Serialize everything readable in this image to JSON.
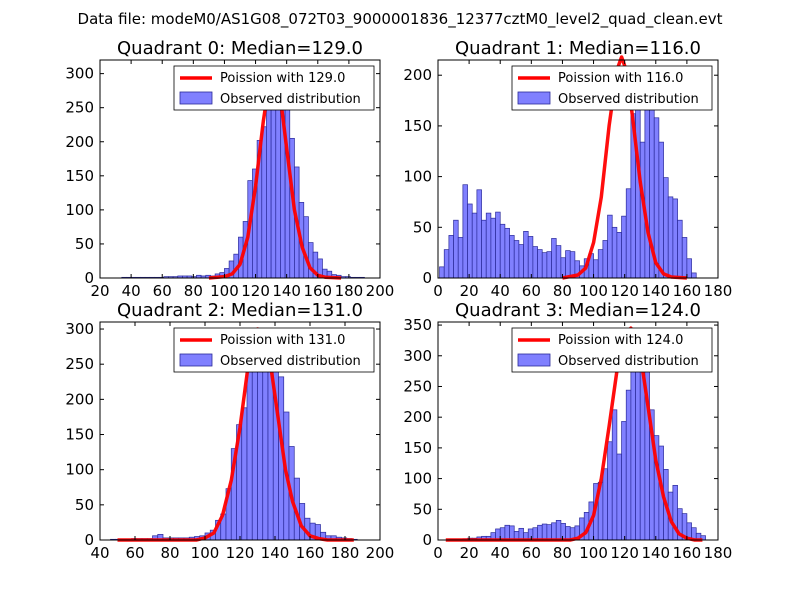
{
  "figure_title": "Data file: modeM0/AS1G08_072T03_9000001836_12377cztM0_level2_quad_clean.evt",
  "colors": {
    "bar_fill": "#8080ff",
    "bar_edge": "#2a2a9a",
    "poisson_line": "#ff0000"
  },
  "chart_data": [
    {
      "type": "bar",
      "title": "Quadrant 0: Median=129.0",
      "xlim": [
        20,
        200
      ],
      "ylim": [
        0,
        320
      ],
      "xticks": [
        20,
        40,
        60,
        80,
        100,
        120,
        140,
        160,
        180,
        200
      ],
      "yticks": [
        0,
        50,
        100,
        150,
        200,
        250,
        300
      ],
      "legend": [
        "Poission with 129.0",
        "Observed distribution"
      ],
      "bin_width": 3,
      "bins": [
        [
          34,
          1
        ],
        [
          37,
          1
        ],
        [
          40,
          1
        ],
        [
          43,
          1
        ],
        [
          46,
          1
        ],
        [
          49,
          1
        ],
        [
          52,
          1
        ],
        [
          55,
          1
        ],
        [
          58,
          1
        ],
        [
          61,
          2
        ],
        [
          64,
          2
        ],
        [
          67,
          2
        ],
        [
          70,
          3
        ],
        [
          73,
          3
        ],
        [
          76,
          3
        ],
        [
          79,
          2
        ],
        [
          82,
          4
        ],
        [
          85,
          3
        ],
        [
          88,
          4
        ],
        [
          91,
          3
        ],
        [
          94,
          6
        ],
        [
          97,
          8
        ],
        [
          100,
          14
        ],
        [
          103,
          25
        ],
        [
          106,
          35
        ],
        [
          109,
          60
        ],
        [
          112,
          83
        ],
        [
          115,
          143
        ],
        [
          118,
          160
        ],
        [
          121,
          202
        ],
        [
          124,
          222
        ],
        [
          127,
          262
        ],
        [
          130,
          267
        ],
        [
          133,
          298
        ],
        [
          136,
          296
        ],
        [
          139,
          270
        ],
        [
          142,
          205
        ],
        [
          145,
          163
        ],
        [
          148,
          111
        ],
        [
          151,
          90
        ],
        [
          154,
          52
        ],
        [
          157,
          38
        ],
        [
          160,
          28
        ],
        [
          163,
          13
        ],
        [
          166,
          10
        ],
        [
          169,
          5
        ],
        [
          172,
          4
        ],
        [
          175,
          2
        ],
        [
          178,
          2
        ],
        [
          181,
          1
        ],
        [
          184,
          1
        ],
        [
          187,
          1
        ]
      ],
      "poisson_curve": [
        [
          90,
          0
        ],
        [
          100,
          2
        ],
        [
          105,
          6
        ],
        [
          110,
          20
        ],
        [
          115,
          60
        ],
        [
          120,
          135
        ],
        [
          125,
          230
        ],
        [
          130,
          305
        ],
        [
          133,
          300
        ],
        [
          136,
          265
        ],
        [
          140,
          190
        ],
        [
          145,
          100
        ],
        [
          150,
          45
        ],
        [
          155,
          15
        ],
        [
          160,
          4
        ],
        [
          165,
          1
        ],
        [
          175,
          0
        ]
      ]
    },
    {
      "type": "bar",
      "title": "Quadrant 1: Median=116.0",
      "xlim": [
        0,
        180
      ],
      "ylim": [
        0,
        215
      ],
      "xticks": [
        0,
        20,
        40,
        60,
        80,
        100,
        120,
        140,
        160,
        180
      ],
      "yticks": [
        0,
        50,
        100,
        150,
        200
      ],
      "legend": [
        "Poission with 116.0",
        "Observed distribution"
      ],
      "bin_width": 3,
      "bins": [
        [
          1,
          11
        ],
        [
          4,
          28
        ],
        [
          7,
          42
        ],
        [
          10,
          57
        ],
        [
          13,
          40
        ],
        [
          16,
          92
        ],
        [
          19,
          73
        ],
        [
          22,
          64
        ],
        [
          25,
          87
        ],
        [
          28,
          57
        ],
        [
          31,
          64
        ],
        [
          34,
          59
        ],
        [
          37,
          65
        ],
        [
          40,
          53
        ],
        [
          43,
          49
        ],
        [
          46,
          42
        ],
        [
          49,
          37
        ],
        [
          52,
          33
        ],
        [
          55,
          46
        ],
        [
          58,
          41
        ],
        [
          61,
          31
        ],
        [
          64,
          28
        ],
        [
          67,
          25
        ],
        [
          70,
          26
        ],
        [
          73,
          39
        ],
        [
          76,
          32
        ],
        [
          79,
          20
        ],
        [
          82,
          27
        ],
        [
          85,
          26
        ],
        [
          88,
          17
        ],
        [
          91,
          12
        ],
        [
          94,
          19
        ],
        [
          97,
          24
        ],
        [
          100,
          18
        ],
        [
          103,
          28
        ],
        [
          106,
          37
        ],
        [
          109,
          62
        ],
        [
          112,
          50
        ],
        [
          115,
          45
        ],
        [
          118,
          61
        ],
        [
          121,
          88
        ],
        [
          124,
          162
        ],
        [
          127,
          177
        ],
        [
          130,
          134
        ],
        [
          133,
          190
        ],
        [
          136,
          189
        ],
        [
          139,
          158
        ],
        [
          142,
          134
        ],
        [
          145,
          99
        ],
        [
          148,
          80
        ],
        [
          151,
          78
        ],
        [
          154,
          57
        ],
        [
          157,
          40
        ],
        [
          160,
          19
        ],
        [
          163,
          5
        ]
      ],
      "poisson_curve": [
        [
          80,
          0
        ],
        [
          90,
          3
        ],
        [
          95,
          10
        ],
        [
          100,
          35
        ],
        [
          105,
          80
        ],
        [
          110,
          150
        ],
        [
          115,
          205
        ],
        [
          118,
          218
        ],
        [
          121,
          205
        ],
        [
          125,
          160
        ],
        [
          130,
          95
        ],
        [
          135,
          45
        ],
        [
          140,
          15
        ],
        [
          145,
          4
        ],
        [
          150,
          1
        ],
        [
          160,
          0
        ]
      ]
    },
    {
      "type": "bar",
      "title": "Quadrant 2: Median=131.0",
      "xlim": [
        40,
        200
      ],
      "ylim": [
        0,
        310
      ],
      "xticks": [
        40,
        60,
        80,
        100,
        120,
        140,
        160,
        180,
        200
      ],
      "yticks": [
        0,
        50,
        100,
        150,
        200,
        250,
        300
      ],
      "legend": [
        "Poission with 131.0",
        "Observed distribution"
      ],
      "bin_width": 3,
      "bins": [
        [
          46,
          1
        ],
        [
          49,
          1
        ],
        [
          52,
          1
        ],
        [
          55,
          1
        ],
        [
          58,
          2
        ],
        [
          61,
          2
        ],
        [
          64,
          2
        ],
        [
          67,
          2
        ],
        [
          70,
          6
        ],
        [
          73,
          8
        ],
        [
          76,
          3
        ],
        [
          79,
          3
        ],
        [
          82,
          3
        ],
        [
          85,
          3
        ],
        [
          88,
          3
        ],
        [
          91,
          4
        ],
        [
          94,
          5
        ],
        [
          97,
          6
        ],
        [
          100,
          10
        ],
        [
          103,
          14
        ],
        [
          106,
          28
        ],
        [
          109,
          37
        ],
        [
          112,
          73
        ],
        [
          115,
          130
        ],
        [
          118,
          164
        ],
        [
          121,
          188
        ],
        [
          124,
          245
        ],
        [
          127,
          287
        ],
        [
          130,
          264
        ],
        [
          133,
          271
        ],
        [
          136,
          278
        ],
        [
          139,
          272
        ],
        [
          142,
          232
        ],
        [
          145,
          182
        ],
        [
          148,
          133
        ],
        [
          151,
          88
        ],
        [
          154,
          52
        ],
        [
          157,
          31
        ],
        [
          160,
          24
        ],
        [
          163,
          22
        ],
        [
          166,
          11
        ],
        [
          169,
          6
        ],
        [
          172,
          6
        ],
        [
          175,
          4
        ],
        [
          178,
          3
        ],
        [
          181,
          2
        ],
        [
          184,
          1
        ]
      ],
      "poisson_curve": [
        [
          50,
          0
        ],
        [
          95,
          0
        ],
        [
          100,
          3
        ],
        [
          105,
          10
        ],
        [
          110,
          35
        ],
        [
          115,
          85
        ],
        [
          120,
          160
        ],
        [
          125,
          255
        ],
        [
          130,
          300
        ],
        [
          134,
          290
        ],
        [
          138,
          240
        ],
        [
          142,
          170
        ],
        [
          146,
          100
        ],
        [
          150,
          55
        ],
        [
          155,
          20
        ],
        [
          160,
          6
        ],
        [
          165,
          2
        ],
        [
          170,
          0
        ],
        [
          185,
          0
        ]
      ]
    },
    {
      "type": "bar",
      "title": "Quadrant 3: Median=124.0",
      "xlim": [
        0,
        180
      ],
      "ylim": [
        0,
        355
      ],
      "xticks": [
        0,
        20,
        40,
        60,
        80,
        100,
        120,
        140,
        160,
        180
      ],
      "yticks": [
        0,
        50,
        100,
        150,
        200,
        250,
        300,
        350
      ],
      "legend": [
        "Poission with 124.0",
        "Observed distribution"
      ],
      "bin_width": 3,
      "bins": [
        [
          7,
          1
        ],
        [
          10,
          1
        ],
        [
          13,
          1
        ],
        [
          16,
          2
        ],
        [
          19,
          3
        ],
        [
          22,
          3
        ],
        [
          25,
          5
        ],
        [
          28,
          6
        ],
        [
          31,
          6
        ],
        [
          34,
          12
        ],
        [
          37,
          18
        ],
        [
          40,
          20
        ],
        [
          43,
          24
        ],
        [
          46,
          23
        ],
        [
          49,
          14
        ],
        [
          52,
          19
        ],
        [
          55,
          12
        ],
        [
          58,
          18
        ],
        [
          61,
          20
        ],
        [
          64,
          24
        ],
        [
          67,
          26
        ],
        [
          70,
          25
        ],
        [
          73,
          28
        ],
        [
          76,
          32
        ],
        [
          79,
          27
        ],
        [
          82,
          22
        ],
        [
          85,
          20
        ],
        [
          88,
          23
        ],
        [
          91,
          36
        ],
        [
          94,
          45
        ],
        [
          97,
          62
        ],
        [
          100,
          92
        ],
        [
          103,
          94
        ],
        [
          106,
          116
        ],
        [
          109,
          160
        ],
        [
          112,
          212
        ],
        [
          115,
          140
        ],
        [
          118,
          193
        ],
        [
          121,
          244
        ],
        [
          124,
          302
        ],
        [
          127,
          295
        ],
        [
          130,
          341
        ],
        [
          133,
          336
        ],
        [
          136,
          212
        ],
        [
          139,
          170
        ],
        [
          142,
          153
        ],
        [
          145,
          115
        ],
        [
          148,
          78
        ],
        [
          151,
          89
        ],
        [
          154,
          51
        ],
        [
          157,
          43
        ],
        [
          160,
          28
        ],
        [
          163,
          20
        ],
        [
          166,
          11
        ],
        [
          169,
          7
        ]
      ],
      "poisson_curve": [
        [
          5,
          0
        ],
        [
          85,
          0
        ],
        [
          90,
          3
        ],
        [
          95,
          12
        ],
        [
          100,
          40
        ],
        [
          105,
          100
        ],
        [
          110,
          185
        ],
        [
          115,
          275
        ],
        [
          120,
          330
        ],
        [
          124,
          345
        ],
        [
          128,
          320
        ],
        [
          132,
          270
        ],
        [
          136,
          200
        ],
        [
          140,
          130
        ],
        [
          145,
          70
        ],
        [
          150,
          30
        ],
        [
          155,
          10
        ],
        [
          160,
          3
        ],
        [
          165,
          0
        ],
        [
          170,
          0
        ]
      ]
    }
  ]
}
